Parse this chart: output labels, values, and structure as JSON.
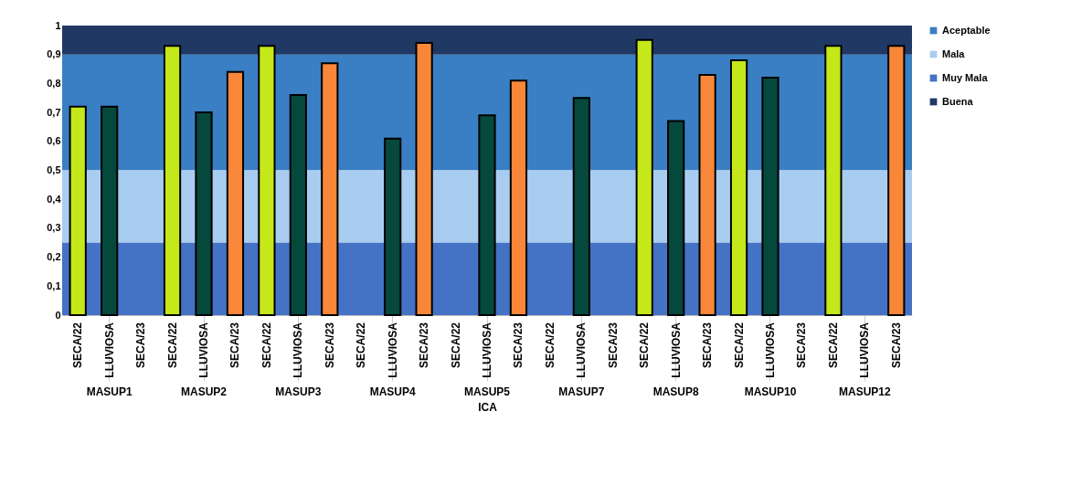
{
  "chart_data": {
    "type": "bar",
    "xlabel": "ICA",
    "categories": [
      "MASUP1",
      "MASUP2",
      "MASUP3",
      "MASUP4",
      "MASUP5",
      "MASUP7",
      "MASUP8",
      "MASUP10",
      "MASUP12"
    ],
    "series": [
      {
        "name": "SECA/22",
        "color": "#c5e81a",
        "values": [
          0.72,
          0.93,
          0.93,
          null,
          null,
          null,
          0.95,
          0.88,
          0.93
        ]
      },
      {
        "name": "LLUVIOSA",
        "color": "#05483c",
        "values": [
          0.72,
          0.7,
          0.76,
          0.61,
          0.69,
          0.75,
          0.67,
          0.82,
          null
        ]
      },
      {
        "name": "SECA/23",
        "color": "#f8873a",
        "values": [
          null,
          0.84,
          0.87,
          0.94,
          0.81,
          null,
          0.83,
          null,
          0.93
        ]
      }
    ],
    "ylim": [
      0,
      1
    ],
    "yticks": [
      0,
      {
        "value": 0.1,
        "label": "0,1"
      },
      {
        "value": 0.2,
        "label": "0,2"
      },
      {
        "value": 0.3,
        "label": "0,3"
      },
      {
        "value": 0.4,
        "label": "0,4"
      },
      {
        "value": 0.5,
        "label": "0,5"
      },
      {
        "value": 0.6,
        "label": "0,6"
      },
      {
        "value": 0.7,
        "label": "0,7"
      },
      {
        "value": 0.8,
        "label": "0,8"
      },
      {
        "value": 0.9,
        "label": "0,9"
      },
      1
    ],
    "bands": [
      {
        "axis": "y",
        "from": 0.5,
        "to": 0.9,
        "label": "Aceptable",
        "color": "#3a7fc4"
      },
      {
        "axis": "y",
        "from": 0.25,
        "to": 0.5,
        "label": "Mala",
        "color": "#a9cdf1"
      },
      {
        "axis": "y",
        "from": 0,
        "to": 0.25,
        "label": "Muy Mala",
        "color": "#4472c4"
      },
      {
        "axis": "y",
        "from": 0.9,
        "to": 1,
        "label": "Buena",
        "color": "#203864"
      }
    ],
    "legend": "right",
    "grid": false
  }
}
